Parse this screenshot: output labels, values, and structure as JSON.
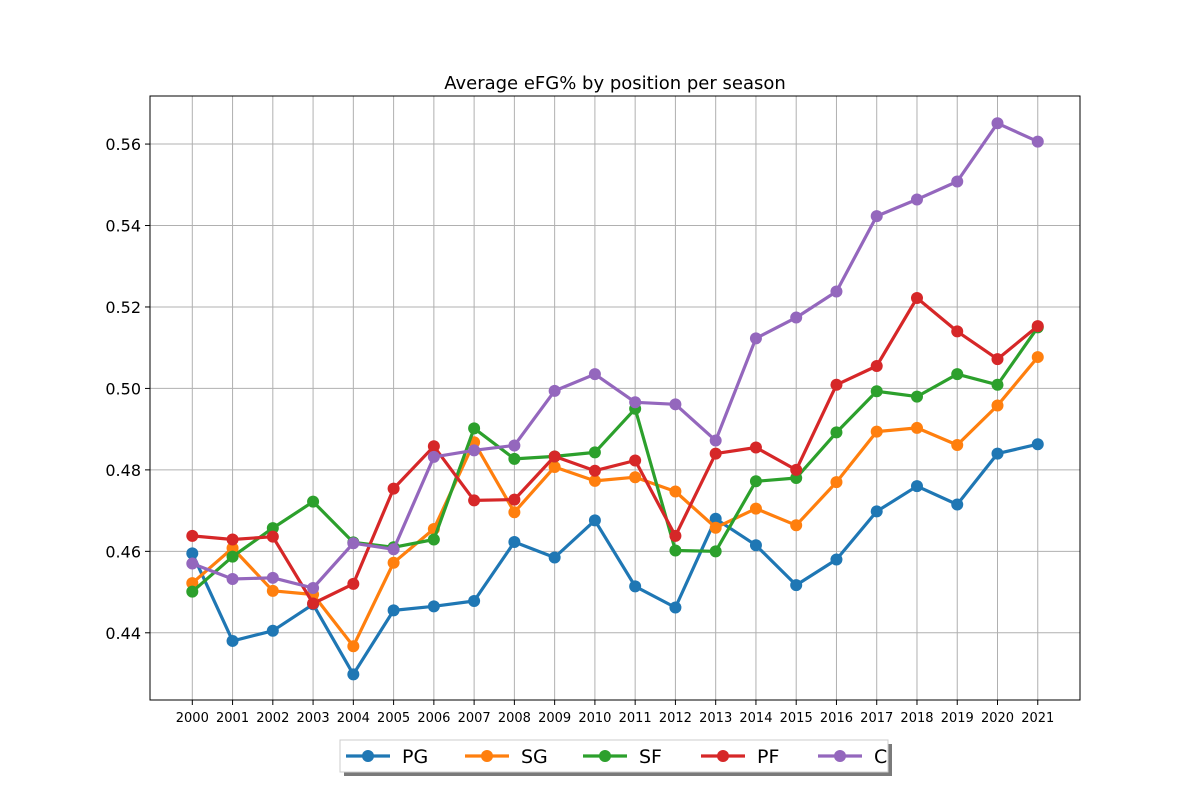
{
  "chart_data": {
    "type": "line",
    "title": "Average eFG% by position per season",
    "xlabel": "",
    "ylabel": "",
    "categories": [
      "2000",
      "2001",
      "2002",
      "2003",
      "2004",
      "2005",
      "2006",
      "2007",
      "2008",
      "2009",
      "2010",
      "2011",
      "2012",
      "2013",
      "2014",
      "2015",
      "2016",
      "2017",
      "2018",
      "2019",
      "2020",
      "2021"
    ],
    "ylim": [
      0.4235,
      0.5718
    ],
    "yticks": [
      "0.44",
      "0.46",
      "0.48",
      "0.50",
      "0.52",
      "0.54",
      "0.56"
    ],
    "ytick_values": [
      0.44,
      0.46,
      0.48,
      0.5,
      0.52,
      0.54,
      0.56
    ],
    "grid": true,
    "legend_placement": "bottom-center",
    "series": [
      {
        "name": "PG",
        "color": "#1f77b4",
        "values": [
          0.4595,
          0.438,
          0.4405,
          0.447,
          0.4298,
          0.4455,
          0.4465,
          0.4478,
          0.4623,
          0.4585,
          0.4676,
          0.4514,
          0.4462,
          0.468,
          0.4615,
          0.4517,
          0.458,
          0.4698,
          0.476,
          0.4715,
          0.484,
          0.4863
        ]
      },
      {
        "name": "SG",
        "color": "#ff7f0e",
        "values": [
          0.4522,
          0.4608,
          0.4503,
          0.4494,
          0.4367,
          0.4572,
          0.4655,
          0.4868,
          0.4696,
          0.4807,
          0.4773,
          0.4782,
          0.4747,
          0.4658,
          0.4705,
          0.4664,
          0.477,
          0.4894,
          0.4903,
          0.4861,
          0.4958,
          0.5077
        ]
      },
      {
        "name": "SF",
        "color": "#2ca02c",
        "values": [
          0.4501,
          0.4587,
          0.4657,
          0.4722,
          0.4622,
          0.461,
          0.4629,
          0.4902,
          0.4827,
          0.4833,
          0.4843,
          0.495,
          0.4602,
          0.46,
          0.4772,
          0.478,
          0.4892,
          0.4993,
          0.498,
          0.5035,
          0.5009,
          0.515
        ]
      },
      {
        "name": "PF",
        "color": "#d62728",
        "values": [
          0.4638,
          0.4629,
          0.4636,
          0.4472,
          0.452,
          0.4754,
          0.4858,
          0.4725,
          0.4727,
          0.4833,
          0.4798,
          0.4823,
          0.4638,
          0.484,
          0.4855,
          0.48,
          0.5009,
          0.5055,
          0.5222,
          0.514,
          0.5072,
          0.5153
        ]
      },
      {
        "name": "C",
        "color": "#9467bd",
        "values": [
          0.457,
          0.4532,
          0.4535,
          0.451,
          0.462,
          0.4605,
          0.4832,
          0.4848,
          0.486,
          0.4994,
          0.5035,
          0.4966,
          0.4961,
          0.4872,
          0.5123,
          0.5174,
          0.5238,
          0.5423,
          0.5464,
          0.5508,
          0.5651,
          0.5606
        ]
      }
    ]
  }
}
